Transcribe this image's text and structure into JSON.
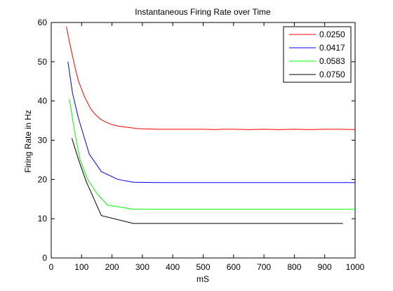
{
  "chart_data": {
    "type": "line",
    "title": "Instantaneous Firing Rate over Time",
    "xlabel": "mS",
    "ylabel": "Firing Rate in Hz",
    "xlim": [
      0,
      1000
    ],
    "ylim": [
      0,
      60
    ],
    "xticks": [
      0,
      100,
      200,
      300,
      400,
      500,
      600,
      700,
      800,
      900,
      1000
    ],
    "yticks": [
      0,
      10,
      20,
      30,
      40,
      50,
      60
    ],
    "grid": false,
    "legend_position": "top-right",
    "series": [
      {
        "name": "0.0250",
        "color": "#ff0000",
        "x": [
          50,
          60,
          70,
          80,
          90,
          100,
          110,
          120,
          130,
          140,
          150,
          160,
          170,
          180,
          200,
          220,
          240,
          260,
          280,
          300,
          350,
          400,
          450,
          500,
          540,
          560,
          600,
          650,
          700,
          750,
          800,
          850,
          900,
          950,
          1000
        ],
        "y": [
          59,
          55,
          51.5,
          48,
          45,
          43,
          41,
          39.5,
          38,
          37,
          36.2,
          35.5,
          35,
          34.6,
          34,
          33.6,
          33.4,
          33.2,
          33,
          32.9,
          32.8,
          32.8,
          32.8,
          32.8,
          32.7,
          32.8,
          32.8,
          32.7,
          32.8,
          32.7,
          32.8,
          32.7,
          32.8,
          32.8,
          32.7
        ]
      },
      {
        "name": "0.0417",
        "color": "#0000ff",
        "x": [
          55,
          70,
          90,
          125,
          165,
          220,
          270,
          350,
          500,
          700,
          1000
        ],
        "y": [
          50,
          42,
          35.5,
          26.5,
          22,
          20,
          19.3,
          19.2,
          19.2,
          19.2,
          19.2
        ]
      },
      {
        "name": "0.0583",
        "color": "#00ff00",
        "x": [
          60,
          75,
          95,
          120,
          150,
          185,
          270,
          400,
          600,
          800,
          1000
        ],
        "y": [
          40.5,
          33,
          25,
          20,
          16.5,
          13.5,
          12.4,
          12.4,
          12.4,
          12.4,
          12.4
        ]
      },
      {
        "name": "0.0750",
        "color": "#000000",
        "x": [
          68,
          90,
          115,
          165,
          270,
          400,
          600,
          800,
          960
        ],
        "y": [
          30.5,
          25,
          19.5,
          10.8,
          8.8,
          8.8,
          8.8,
          8.8,
          8.8
        ]
      }
    ]
  }
}
